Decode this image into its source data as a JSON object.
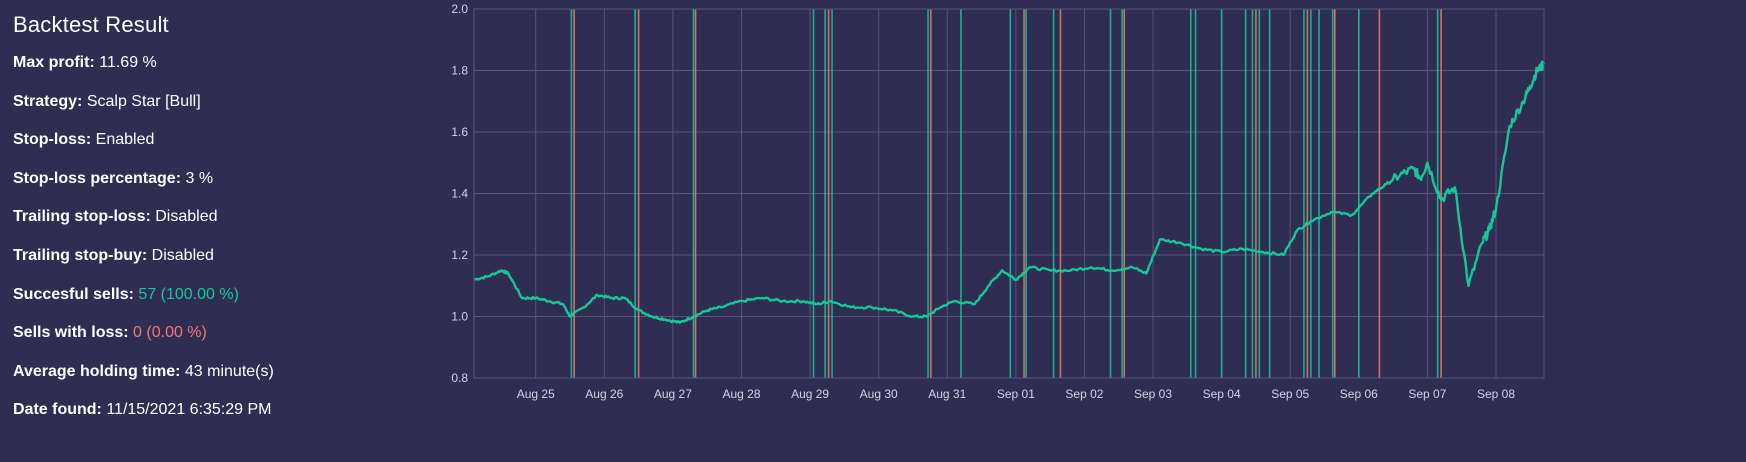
{
  "panel": {
    "title": "Backtest Result",
    "max_profit": {
      "label": "Max profit:",
      "value": "11.69 %"
    },
    "strategy": {
      "label": "Strategy:",
      "value": "Scalp Star [Bull]"
    },
    "stop_loss": {
      "label": "Stop-loss:",
      "value": "Enabled"
    },
    "stop_loss_pct": {
      "label": "Stop-loss percentage:",
      "value": "3 %"
    },
    "trailing_sl": {
      "label": "Trailing stop-loss:",
      "value": "Disabled"
    },
    "trailing_sb": {
      "label": "Trailing stop-buy:",
      "value": "Disabled"
    },
    "successful": {
      "label": "Succesful sells:",
      "value": "57 (100.00 %)"
    },
    "loss_sells": {
      "label": "Sells with loss:",
      "value": "0 (0.00 %)"
    },
    "holding": {
      "label": "Average holding time:",
      "value": "43 minute(s)"
    },
    "date_found": {
      "label": "Date found:",
      "value": "11/15/2021 6:35:29 PM"
    }
  },
  "colors": {
    "background": "#2f2d52",
    "line": "#16c79a",
    "sell_marker": "#16c79a",
    "buy_marker": "#f07a73",
    "grid": "#56547a",
    "loss_text": "#f07a73"
  },
  "chart_data": {
    "type": "line",
    "title": "",
    "xlabel": "",
    "ylabel": "",
    "xlim": [
      24.1,
      39.7
    ],
    "ylim": [
      0.8,
      2.0
    ],
    "yticks": [
      0.8,
      1.0,
      1.2,
      1.4,
      1.6,
      1.8,
      2.0
    ],
    "ytick_labels": [
      "0.8",
      "1.0",
      "1.2",
      "1.4",
      "1.6",
      "1.8",
      "2.0"
    ],
    "xticks": [
      25,
      26,
      27,
      28,
      29,
      30,
      31,
      32,
      33,
      34,
      35,
      36,
      37,
      38,
      39
    ],
    "xtick_labels": [
      "Aug 25",
      "Aug 26",
      "Aug 27",
      "Aug 28",
      "Aug 29",
      "Aug 30",
      "Aug 31",
      "Sep 01",
      "Sep 02",
      "Sep 03",
      "Sep 04",
      "Sep 05",
      "Sep 06",
      "Sep 07",
      "Sep 08"
    ],
    "grid": true,
    "legend": "none",
    "series": [
      {
        "x": [
          24.1,
          24.3,
          24.5,
          24.6,
          24.8,
          25.0,
          25.2,
          25.4,
          25.5,
          25.7,
          25.9,
          26.1,
          26.3,
          26.5,
          26.7,
          26.9,
          27.1,
          27.3,
          27.5,
          27.7,
          28.0,
          28.3,
          28.6,
          28.9,
          29.1,
          29.3,
          29.6,
          29.9,
          30.2,
          30.5,
          30.7,
          30.9,
          31.1,
          31.4,
          31.6,
          31.8,
          32.0,
          32.2,
          32.5,
          32.8,
          33.1,
          33.4,
          33.7,
          33.9,
          34.1,
          34.4,
          34.7,
          35.0,
          35.3,
          35.6,
          35.9,
          36.1,
          36.3,
          36.6,
          36.9,
          37.2,
          37.4,
          37.6,
          37.8,
          37.9,
          38.0,
          38.2,
          38.4,
          38.6,
          38.8,
          38.9,
          39.0,
          39.2,
          39.4,
          39.5,
          39.6,
          39.7
        ],
        "y": [
          1.12,
          1.13,
          1.15,
          1.14,
          1.06,
          1.06,
          1.05,
          1.04,
          1.0,
          1.03,
          1.07,
          1.06,
          1.06,
          1.02,
          1.0,
          0.99,
          0.98,
          1.0,
          1.02,
          1.03,
          1.05,
          1.06,
          1.05,
          1.05,
          1.04,
          1.05,
          1.03,
          1.03,
          1.02,
          1.0,
          1.0,
          1.03,
          1.05,
          1.04,
          1.1,
          1.15,
          1.12,
          1.16,
          1.15,
          1.15,
          1.16,
          1.15,
          1.16,
          1.14,
          1.25,
          1.24,
          1.22,
          1.21,
          1.22,
          1.21,
          1.2,
          1.28,
          1.31,
          1.34,
          1.33,
          1.4,
          1.43,
          1.46,
          1.48,
          1.45,
          1.5,
          1.38,
          1.42,
          1.1,
          1.24,
          1.28,
          1.35,
          1.62,
          1.7,
          1.75,
          1.8,
          1.82
        ]
      }
    ],
    "trade_markers": [
      {
        "x": 25.52,
        "type": "sell"
      },
      {
        "x": 25.56,
        "type": "buy"
      },
      {
        "x": 26.45,
        "type": "sell"
      },
      {
        "x": 26.5,
        "type": "buy"
      },
      {
        "x": 27.3,
        "type": "sell"
      },
      {
        "x": 27.33,
        "type": "buy"
      },
      {
        "x": 29.05,
        "type": "sell"
      },
      {
        "x": 29.22,
        "type": "sell"
      },
      {
        "x": 29.27,
        "type": "buy"
      },
      {
        "x": 29.32,
        "type": "sell"
      },
      {
        "x": 30.72,
        "type": "sell"
      },
      {
        "x": 30.76,
        "type": "buy"
      },
      {
        "x": 31.2,
        "type": "sell"
      },
      {
        "x": 31.92,
        "type": "sell"
      },
      {
        "x": 32.12,
        "type": "buy"
      },
      {
        "x": 32.15,
        "type": "sell"
      },
      {
        "x": 32.55,
        "type": "sell"
      },
      {
        "x": 32.65,
        "type": "buy"
      },
      {
        "x": 33.38,
        "type": "sell"
      },
      {
        "x": 33.55,
        "type": "sell"
      },
      {
        "x": 33.58,
        "type": "buy"
      },
      {
        "x": 34.55,
        "type": "sell"
      },
      {
        "x": 34.62,
        "type": "sell"
      },
      {
        "x": 35.0,
        "type": "sell"
      },
      {
        "x": 35.35,
        "type": "sell"
      },
      {
        "x": 35.45,
        "type": "sell"
      },
      {
        "x": 35.5,
        "type": "buy"
      },
      {
        "x": 35.55,
        "type": "sell"
      },
      {
        "x": 35.7,
        "type": "sell"
      },
      {
        "x": 36.2,
        "type": "sell"
      },
      {
        "x": 36.25,
        "type": "buy"
      },
      {
        "x": 36.3,
        "type": "sell"
      },
      {
        "x": 36.42,
        "type": "sell"
      },
      {
        "x": 36.62,
        "type": "sell"
      },
      {
        "x": 36.65,
        "type": "buy"
      },
      {
        "x": 37.0,
        "type": "sell"
      },
      {
        "x": 37.3,
        "type": "buy"
      },
      {
        "x": 38.15,
        "type": "sell"
      },
      {
        "x": 38.2,
        "type": "buy"
      }
    ]
  }
}
